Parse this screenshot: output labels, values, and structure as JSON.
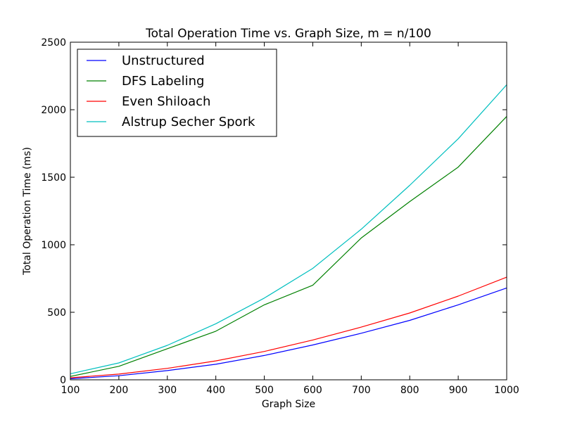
{
  "chart_data": {
    "type": "line",
    "title": "Total Operation Time vs. Graph Size, m = n/100",
    "xlabel": "Graph Size",
    "ylabel": "Total Operation Time (ms)",
    "xlim": [
      100,
      1000
    ],
    "ylim": [
      0,
      2500
    ],
    "xticks": [
      100,
      200,
      300,
      400,
      500,
      600,
      700,
      800,
      900,
      1000
    ],
    "yticks": [
      0,
      500,
      1000,
      1500,
      2000,
      2500
    ],
    "grid": false,
    "legend_position": "top-left",
    "x": [
      100,
      200,
      300,
      400,
      500,
      600,
      700,
      800,
      900,
      1000
    ],
    "series": [
      {
        "name": "Unstructured",
        "color": "#0000ff",
        "values": [
          8,
          30,
          68,
          115,
          180,
          258,
          345,
          440,
          555,
          680
        ]
      },
      {
        "name": "DFS Labeling",
        "color": "#008000",
        "values": [
          25,
          100,
          230,
          360,
          555,
          700,
          1050,
          1320,
          1575,
          1950
        ]
      },
      {
        "name": "Even Shiloach",
        "color": "#ff0000",
        "values": [
          15,
          42,
          85,
          140,
          210,
          295,
          390,
          495,
          620,
          760
        ]
      },
      {
        "name": "Alstrup Secher Spork",
        "color": "#00bfbf",
        "values": [
          45,
          125,
          255,
          415,
          605,
          825,
          1115,
          1440,
          1785,
          2185
        ]
      }
    ]
  }
}
